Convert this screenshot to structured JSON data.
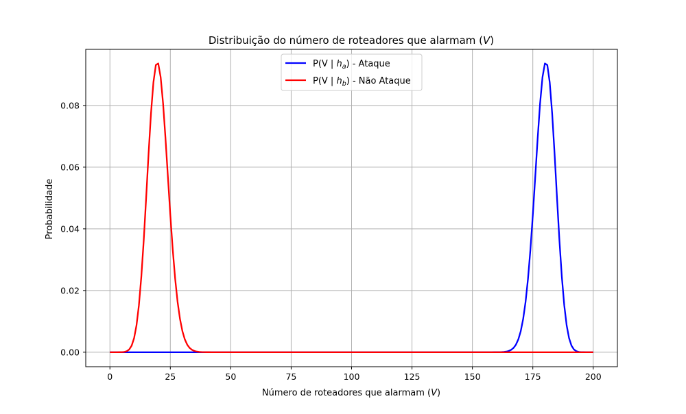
{
  "chart_data": {
    "type": "line",
    "title": {
      "prefix": "Distribuição do número de roteadores que alarmam (",
      "variable": "V",
      "suffix": ")"
    },
    "xlabel": {
      "prefix": "Número de roteadores que alarmam (",
      "variable": "V",
      "suffix": ")"
    },
    "ylabel": "Probabilidade",
    "xlim": [
      -10,
      210
    ],
    "ylim": [
      -0.0047,
      0.0982
    ],
    "xticks": [
      0,
      25,
      50,
      75,
      100,
      125,
      150,
      175,
      200
    ],
    "xtick_labels": [
      "0",
      "25",
      "50",
      "75",
      "100",
      "125",
      "150",
      "175",
      "200"
    ],
    "yticks": [
      0.0,
      0.02,
      0.04,
      0.06,
      0.08
    ],
    "ytick_labels": [
      "0.00",
      "0.02",
      "0.04",
      "0.06",
      "0.08"
    ],
    "grid": true,
    "legend_position": "upper center",
    "x_range": [
      0,
      200
    ],
    "series": [
      {
        "name_prefix": "P(V | ",
        "name_var": "h",
        "name_sub": "a",
        "name_suffix": ") - Ataque",
        "color": "#0000ff",
        "distribution": "binomial",
        "n": 200,
        "p": 0.9,
        "peak_x": 180,
        "peak_y": 0.0936
      },
      {
        "name_prefix": "P(V | ",
        "name_var": "h",
        "name_sub": "b",
        "name_suffix": ") - Não Ataque",
        "color": "#ff0000",
        "distribution": "binomial",
        "n": 200,
        "p": 0.1,
        "peak_x": 20,
        "peak_y": 0.0936
      }
    ]
  }
}
